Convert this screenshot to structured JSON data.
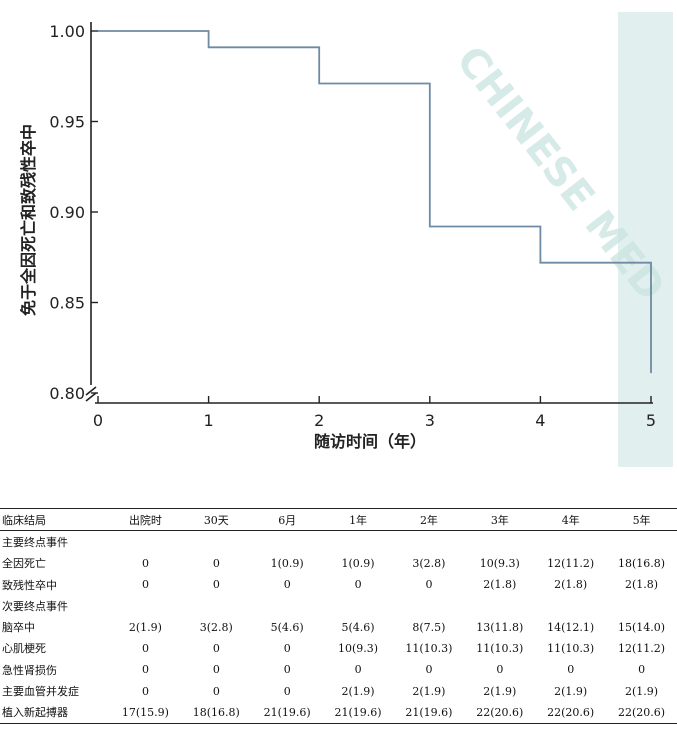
{
  "chart_data": {
    "type": "line",
    "subtype": "step",
    "xlabel": "随访时间（年）",
    "ylabel": "免于全因死亡和致残性卒中",
    "xlim": [
      0,
      5
    ],
    "ylim": [
      0.8,
      1.0
    ],
    "x_ticks": [
      "0",
      "1",
      "2",
      "3",
      "4",
      "5"
    ],
    "y_ticks": [
      "0.80",
      "0.85",
      "0.90",
      "0.95",
      "1.00"
    ],
    "series": [
      {
        "color": "#6f8aa2",
        "points": [
          [
            0,
            1.0
          ],
          [
            1,
            1.0
          ],
          [
            1,
            0.991
          ],
          [
            2,
            0.991
          ],
          [
            2,
            0.971
          ],
          [
            3,
            0.971
          ],
          [
            3,
            0.892
          ],
          [
            4,
            0.892
          ],
          [
            4,
            0.872
          ],
          [
            5,
            0.872
          ],
          [
            5,
            0.811
          ]
        ]
      }
    ],
    "axis_break": true,
    "grid": false
  },
  "watermark": "CHINESE MED",
  "table": {
    "columns": [
      "临床结局",
      "出院时",
      "30天",
      "6月",
      "1年",
      "2年",
      "3年",
      "4年",
      "5年"
    ],
    "rows": [
      {
        "label": "主要终点事件",
        "cells": [
          "",
          "",
          "",
          "",
          "",
          "",
          "",
          ""
        ]
      },
      {
        "label": "全因死亡",
        "cells": [
          "0",
          "0",
          "1(0.9)",
          "1(0.9)",
          "3(2.8)",
          "10(9.3)",
          "12(11.2)",
          "18(16.8)"
        ]
      },
      {
        "label": "致残性卒中",
        "cells": [
          "0",
          "0",
          "0",
          "0",
          "0",
          "2(1.8)",
          "2(1.8)",
          "2(1.8)"
        ]
      },
      {
        "label": "次要终点事件",
        "cells": [
          "",
          "",
          "",
          "",
          "",
          "",
          "",
          ""
        ]
      },
      {
        "label": "脑卒中",
        "cells": [
          "2(1.9)",
          "3(2.8)",
          "5(4.6)",
          "5(4.6)",
          "8(7.5)",
          "13(11.8)",
          "14(12.1)",
          "15(14.0)"
        ]
      },
      {
        "label": "心肌梗死",
        "cells": [
          "0",
          "0",
          "0",
          "10(9.3)",
          "11(10.3)",
          "11(10.3)",
          "11(10.3)",
          "12(11.2)"
        ]
      },
      {
        "label": "急性肾损伤",
        "cells": [
          "0",
          "0",
          "0",
          "0",
          "0",
          "0",
          "0",
          "0"
        ]
      },
      {
        "label": "主要血管并发症",
        "cells": [
          "0",
          "0",
          "0",
          "2(1.9)",
          "2(1.9)",
          "2(1.9)",
          "2(1.9)",
          "2(1.9)"
        ]
      },
      {
        "label": "植入新起搏器",
        "cells": [
          "17(15.9)",
          "18(16.8)",
          "21(19.6)",
          "21(19.6)",
          "21(19.6)",
          "22(20.6)",
          "22(20.6)",
          "22(20.6)"
        ]
      }
    ]
  }
}
